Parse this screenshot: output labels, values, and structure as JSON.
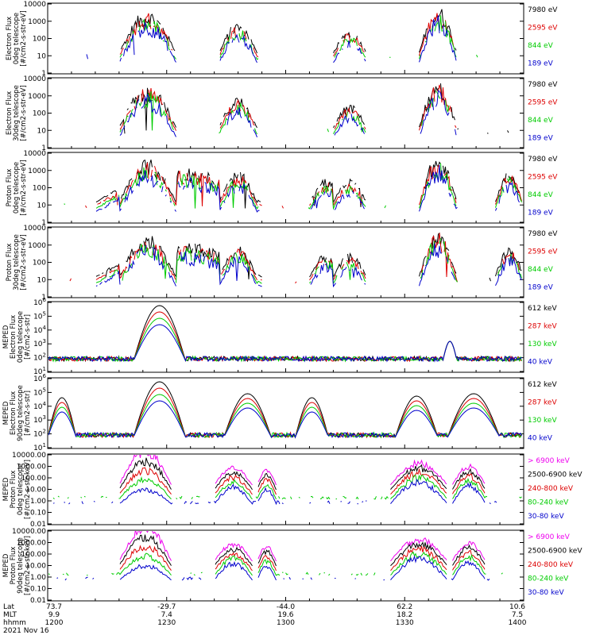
{
  "chart_data": {
    "type": "line",
    "date": "2021 Nov 16",
    "x_axis": {
      "time_ticks": [
        "1200",
        "1230",
        "1300",
        "1330",
        "1400"
      ],
      "lat_values": [
        "73.7",
        "-29.7",
        "-44.0",
        "62.2",
        "10.6"
      ],
      "mlt_values": [
        "9.9",
        "7.4",
        "19.6",
        "18.2",
        "7.5"
      ],
      "row_labels": [
        "Lat",
        "MLT",
        "hhmm"
      ]
    },
    "panels": [
      {
        "ylabel": [
          "Electron Flux",
          "0deg telescope",
          "[#/cm2-s-str-eV]"
        ],
        "log_ticks": [
          "1",
          "10",
          "100",
          "1000",
          "10000"
        ],
        "scale": "log",
        "channels": [
          {
            "label": "7980 eV",
            "color": "#000000"
          },
          {
            "label": "2595 eV",
            "color": "#dd0000"
          },
          {
            "label": "844 eV",
            "color": "#00cc00"
          },
          {
            "label": "189 eV",
            "color": "#0000cc"
          }
        ]
      },
      {
        "ylabel": [
          "Electron Flux",
          "30deg telescope",
          "[#/cm2-s-str-eV]"
        ],
        "log_ticks": [
          "1",
          "10",
          "100",
          "1000",
          "10000"
        ],
        "scale": "log",
        "channels": [
          {
            "label": "7980 eV",
            "color": "#000000"
          },
          {
            "label": "2595 eV",
            "color": "#dd0000"
          },
          {
            "label": "844 eV",
            "color": "#00cc00"
          },
          {
            "label": "189 eV",
            "color": "#0000cc"
          }
        ]
      },
      {
        "ylabel": [
          "Proton Flux",
          "0deg telescope",
          "[#/cm2-s-str-eV]"
        ],
        "log_ticks": [
          "1",
          "10",
          "100",
          "1000",
          "10000"
        ],
        "scale": "log",
        "channels": [
          {
            "label": "7980 eV",
            "color": "#000000"
          },
          {
            "label": "2595 eV",
            "color": "#dd0000"
          },
          {
            "label": "844 eV",
            "color": "#00cc00"
          },
          {
            "label": "189 eV",
            "color": "#0000cc"
          }
        ]
      },
      {
        "ylabel": [
          "Proton Flux",
          "30deg telescope",
          "[#/cm2-s-str-eV]"
        ],
        "log_ticks": [
          "1",
          "10",
          "100",
          "1000",
          "10000"
        ],
        "scale": "log",
        "channels": [
          {
            "label": "7980 eV",
            "color": "#000000"
          },
          {
            "label": "2595 eV",
            "color": "#dd0000"
          },
          {
            "label": "844 eV",
            "color": "#00cc00"
          },
          {
            "label": "189 eV",
            "color": "#0000cc"
          }
        ]
      },
      {
        "ylabel": [
          "MEPED",
          "Electron Flux",
          "0deg telescope",
          "[#/cm2-s-str]"
        ],
        "log_ticks": [
          "10^1",
          "10^2",
          "10^3",
          "10^4",
          "10^5",
          "10^6"
        ],
        "scale": "log",
        "channels": [
          {
            "label": "612 keV",
            "color": "#000000"
          },
          {
            "label": "287 keV",
            "color": "#dd0000"
          },
          {
            "label": "130 keV",
            "color": "#00cc00"
          },
          {
            "label": "40 keV",
            "color": "#0000cc"
          }
        ]
      },
      {
        "ylabel": [
          "MEPED",
          "Electron Flux",
          "90deg telescope",
          "[#/cm2-s-str]"
        ],
        "log_ticks": [
          "10^1",
          "10^2",
          "10^3",
          "10^4",
          "10^5",
          "10^6"
        ],
        "scale": "log",
        "channels": [
          {
            "label": "612 keV",
            "color": "#000000"
          },
          {
            "label": "287 keV",
            "color": "#dd0000"
          },
          {
            "label": "130 keV",
            "color": "#00cc00"
          },
          {
            "label": "40 keV",
            "color": "#0000cc"
          }
        ]
      },
      {
        "ylabel": [
          "MEPED",
          "Proton Flux",
          "0deg telescope",
          "[#/cm2-s-str-keV]"
        ],
        "log_ticks": [
          "0.01",
          "0.10",
          "1.00",
          "10.00",
          "100.00",
          "1000.00",
          "10000.00"
        ],
        "scale": "log",
        "channels": [
          {
            "label": "> 6900 keV",
            "color": "#ee00ee"
          },
          {
            "label": "2500-6900 keV",
            "color": "#000000"
          },
          {
            "label": "240-800 keV",
            "color": "#dd0000"
          },
          {
            "label": "80-240 keV",
            "color": "#00cc00"
          },
          {
            "label": "30-80 keV",
            "color": "#0000cc"
          }
        ]
      },
      {
        "ylabel": [
          "MEPED",
          "Proton Flux",
          "90deg telescope",
          "[#/cm2-s-str-keV]"
        ],
        "log_ticks": [
          "0.01",
          "0.10",
          "1.00",
          "10.00",
          "100.00",
          "1000.00",
          "10000.00"
        ],
        "scale": "log",
        "channels": [
          {
            "label": "> 6900 keV",
            "color": "#ee00ee"
          },
          {
            "label": "2500-6900 keV",
            "color": "#000000"
          },
          {
            "label": "240-800 keV",
            "color": "#dd0000"
          },
          {
            "label": "80-240 keV",
            "color": "#00cc00"
          },
          {
            "label": "30-80 keV",
            "color": "#0000cc"
          }
        ]
      }
    ]
  }
}
